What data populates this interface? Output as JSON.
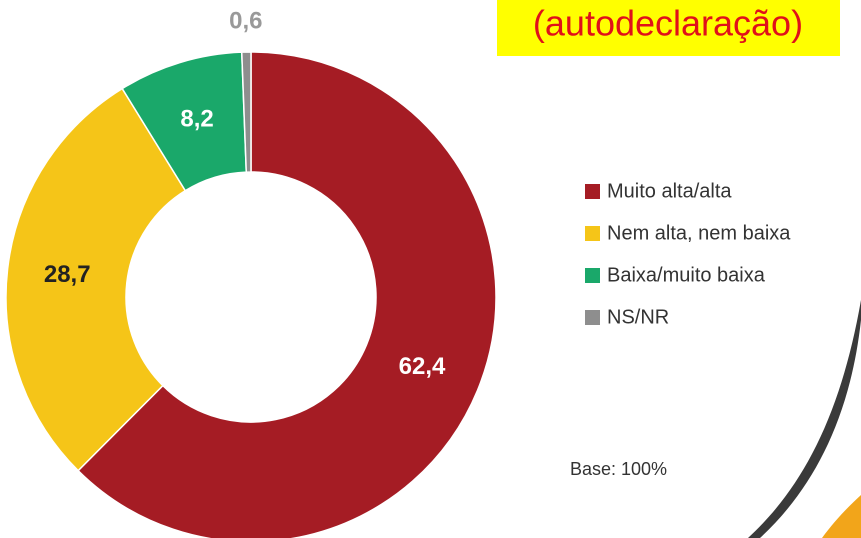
{
  "chart_data": {
    "type": "pie",
    "donut": true,
    "title": "(autodeclaração)",
    "categories": [
      "Muito alta/alta",
      "Nem alta, nem baixa",
      "Baixa/muito baixa",
      "NS/NR"
    ],
    "values": [
      62.4,
      28.7,
      8.2,
      0.6
    ],
    "value_labels": [
      "62,4",
      "28,7",
      "8,2",
      "0,6"
    ],
    "colors": [
      "#a51c24",
      "#f5c518",
      "#1aa86a",
      "#8e8e8e"
    ],
    "legend": "right",
    "annotation": "Base: 100%"
  }
}
